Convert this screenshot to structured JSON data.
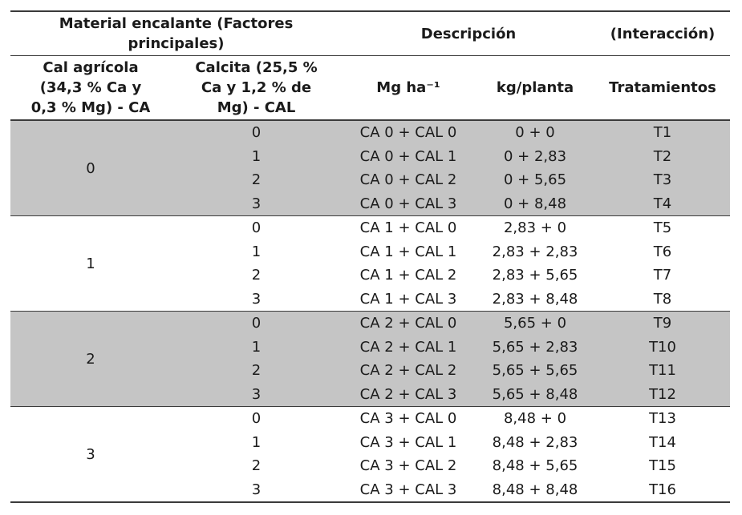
{
  "table": {
    "top_header": {
      "material_lines": [
        "Material encalante (Factores",
        "principales)"
      ],
      "descripcion": "Descripción",
      "interaccion": "(Interacción)"
    },
    "column_headers": {
      "cal_agricola_lines": [
        "Cal agrícola",
        "(34,3 % Ca y",
        "0,3 % Mg) - CA"
      ],
      "calcita_lines": [
        "Calcita (25,5 %",
        "Ca y 1,2 % de",
        "Mg) - CAL"
      ],
      "mg_ha": "Mg ha⁻¹",
      "kg_planta": "kg/planta",
      "tratamientos": "Tratamientos"
    },
    "groups": [
      {
        "ca": "0",
        "shaded": true,
        "rows": [
          {
            "cal": "0",
            "descripcion": "CA 0 + CAL 0",
            "kg_planta": "0 + 0",
            "tratamiento": "T1"
          },
          {
            "cal": "1",
            "descripcion": "CA 0 + CAL 1",
            "kg_planta": "0 + 2,83",
            "tratamiento": "T2"
          },
          {
            "cal": "2",
            "descripcion": "CA 0 + CAL 2",
            "kg_planta": "0 + 5,65",
            "tratamiento": "T3"
          },
          {
            "cal": "3",
            "descripcion": "CA 0 + CAL 3",
            "kg_planta": "0 + 8,48",
            "tratamiento": "T4"
          }
        ]
      },
      {
        "ca": "1",
        "shaded": false,
        "rows": [
          {
            "cal": "0",
            "descripcion": "CA 1 + CAL 0",
            "kg_planta": "2,83 + 0",
            "tratamiento": "T5"
          },
          {
            "cal": "1",
            "descripcion": "CA 1 + CAL 1",
            "kg_planta": "2,83 + 2,83",
            "tratamiento": "T6"
          },
          {
            "cal": "2",
            "descripcion": "CA 1 + CAL 2",
            "kg_planta": "2,83 + 5,65",
            "tratamiento": "T7"
          },
          {
            "cal": "3",
            "descripcion": "CA 1 + CAL 3",
            "kg_planta": "2,83 + 8,48",
            "tratamiento": "T8"
          }
        ]
      },
      {
        "ca": "2",
        "shaded": true,
        "rows": [
          {
            "cal": "0",
            "descripcion": "CA 2 + CAL 0",
            "kg_planta": "5,65 + 0",
            "tratamiento": "T9"
          },
          {
            "cal": "1",
            "descripcion": "CA 2 + CAL 1",
            "kg_planta": "5,65 + 2,83",
            "tratamiento": "T10"
          },
          {
            "cal": "2",
            "descripcion": "CA 2 + CAL 2",
            "kg_planta": "5,65 + 5,65",
            "tratamiento": "T11"
          },
          {
            "cal": "3",
            "descripcion": "CA 2 + CAL 3",
            "kg_planta": "5,65 + 8,48",
            "tratamiento": "T12"
          }
        ]
      },
      {
        "ca": "3",
        "shaded": false,
        "rows": [
          {
            "cal": "0",
            "descripcion": "CA 3 + CAL 0",
            "kg_planta": "8,48 + 0",
            "tratamiento": "T13"
          },
          {
            "cal": "1",
            "descripcion": "CA 3 + CAL 1",
            "kg_planta": "8,48 + 2,83",
            "tratamiento": "T14"
          },
          {
            "cal": "2",
            "descripcion": "CA 3 + CAL 2",
            "kg_planta": "8,48 + 5,65",
            "tratamiento": "T15"
          },
          {
            "cal": "3",
            "descripcion": "CA 3 + CAL 3",
            "kg_planta": "8,48 + 8,48",
            "tratamiento": "T16"
          }
        ]
      }
    ]
  },
  "colors": {
    "shaded_row_bg": "#c5c5c5",
    "rule": "#3a3a3a",
    "text": "#1b1b1b",
    "background": "#ffffff"
  }
}
